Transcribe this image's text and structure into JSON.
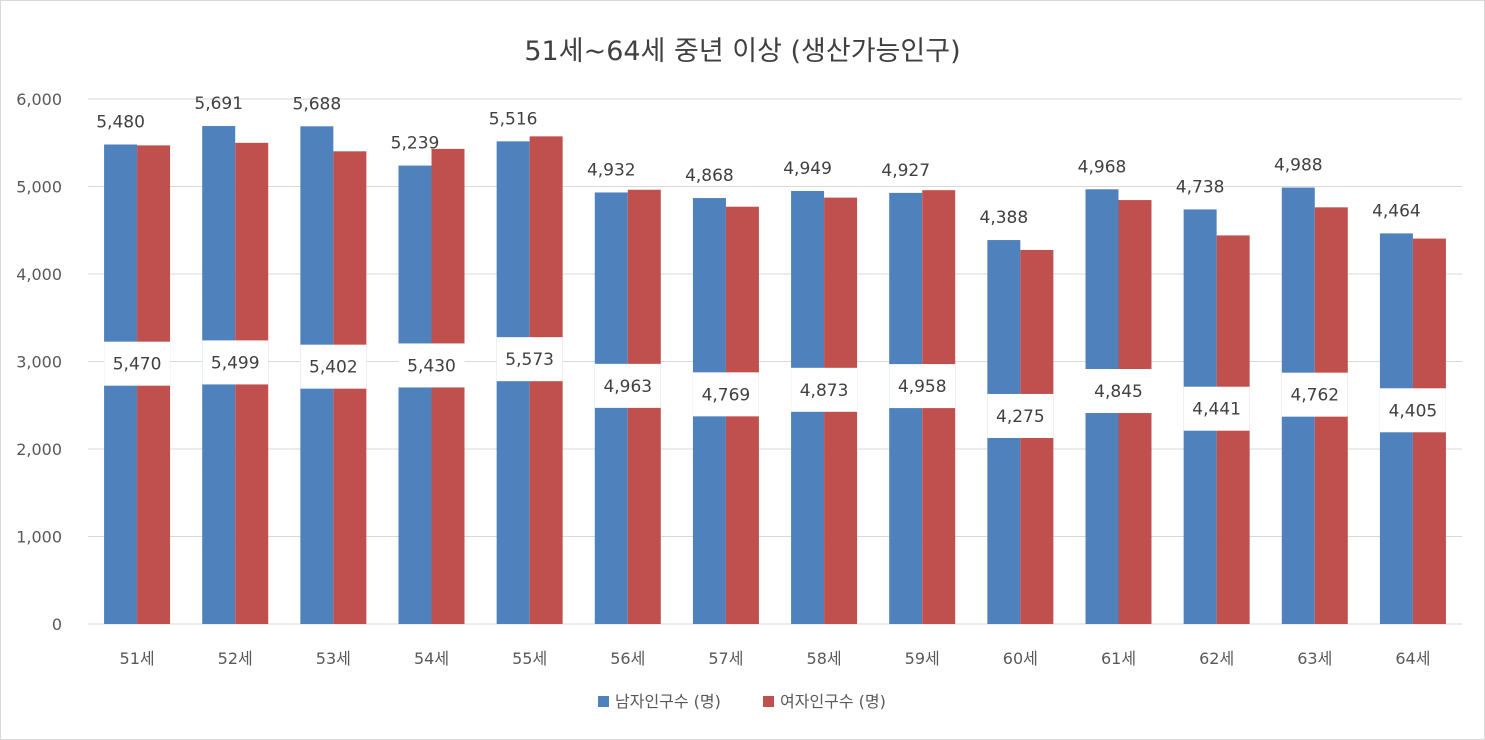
{
  "chart_data": {
    "type": "bar",
    "title": "51세~64세 중년 이상 (생산가능인구)",
    "categories": [
      "51세",
      "52세",
      "53세",
      "54세",
      "55세",
      "56세",
      "57세",
      "58세",
      "59세",
      "60세",
      "61세",
      "62세",
      "63세",
      "64세"
    ],
    "series": [
      {
        "name": "남자인구수 (명)",
        "color": "#4f81bd",
        "values": [
          5480,
          5691,
          5688,
          5239,
          5516,
          4932,
          4868,
          4949,
          4927,
          4388,
          4968,
          4738,
          4988,
          4464
        ],
        "labels": [
          "5,480",
          "5,691",
          "5,688",
          "5,239",
          "5,516",
          "4,932",
          "4,868",
          "4,949",
          "4,927",
          "4,388",
          "4,968",
          "4,738",
          "4,988",
          "4,464"
        ]
      },
      {
        "name": "여자인구수 (명)",
        "color": "#c0504d",
        "values": [
          5470,
          5499,
          5402,
          5430,
          5573,
          4963,
          4769,
          4873,
          4958,
          4275,
          4845,
          4441,
          4762,
          4405
        ],
        "labels": [
          "5,470",
          "5,499",
          "5,402",
          "5,430",
          "5,573",
          "4,963",
          "4,769",
          "4,873",
          "4,958",
          "4,275",
          "4,845",
          "4,441",
          "4,762",
          "4,405"
        ]
      }
    ],
    "ylim": [
      0,
      6000
    ],
    "yticks": [
      0,
      1000,
      2000,
      3000,
      4000,
      5000,
      6000
    ],
    "ytick_labels": [
      "0",
      "1,000",
      "2,000",
      "3,000",
      "4,000",
      "5,000",
      "6,000"
    ],
    "grid": true,
    "legend_position": "bottom",
    "xlabel": "",
    "ylabel": ""
  }
}
